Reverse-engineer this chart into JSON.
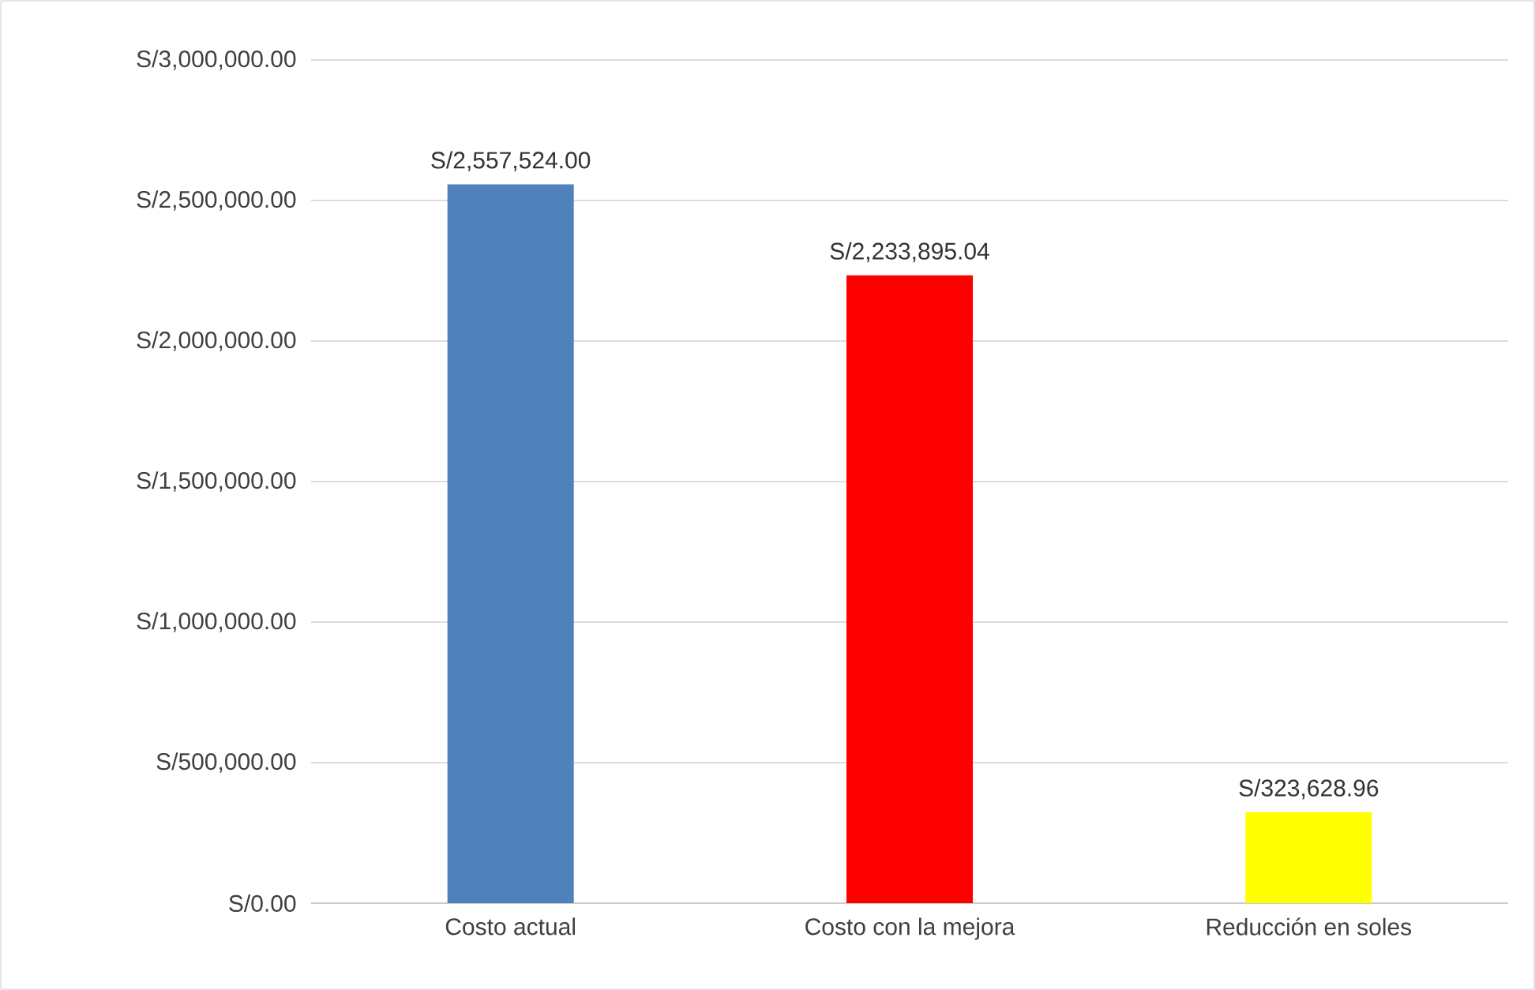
{
  "chart_data": {
    "type": "bar",
    "categories": [
      "Costo actual",
      "Costo con la mejora",
      "Reducción en soles"
    ],
    "values": [
      2557524.0,
      2233895.04,
      323628.96
    ],
    "colors": [
      "#4f81bd",
      "#ff0000",
      "#ffff00"
    ],
    "value_labels": [
      "S/2,557,524.00",
      "S/2,233,895.04",
      "S/323,628.96"
    ],
    "ylim": [
      0,
      3000000
    ],
    "yticks": [
      {
        "value": 0,
        "label": "S/0.00"
      },
      {
        "value": 500000,
        "label": "S/500,000.00"
      },
      {
        "value": 1000000,
        "label": "S/1,000,000.00"
      },
      {
        "value": 1500000,
        "label": "S/1,500,000.00"
      },
      {
        "value": 2000000,
        "label": "S/2,000,000.00"
      },
      {
        "value": 2500000,
        "label": "S/2,500,000.00"
      },
      {
        "value": 3000000,
        "label": "S/3,000,000.00"
      }
    ],
    "grid": "y"
  }
}
